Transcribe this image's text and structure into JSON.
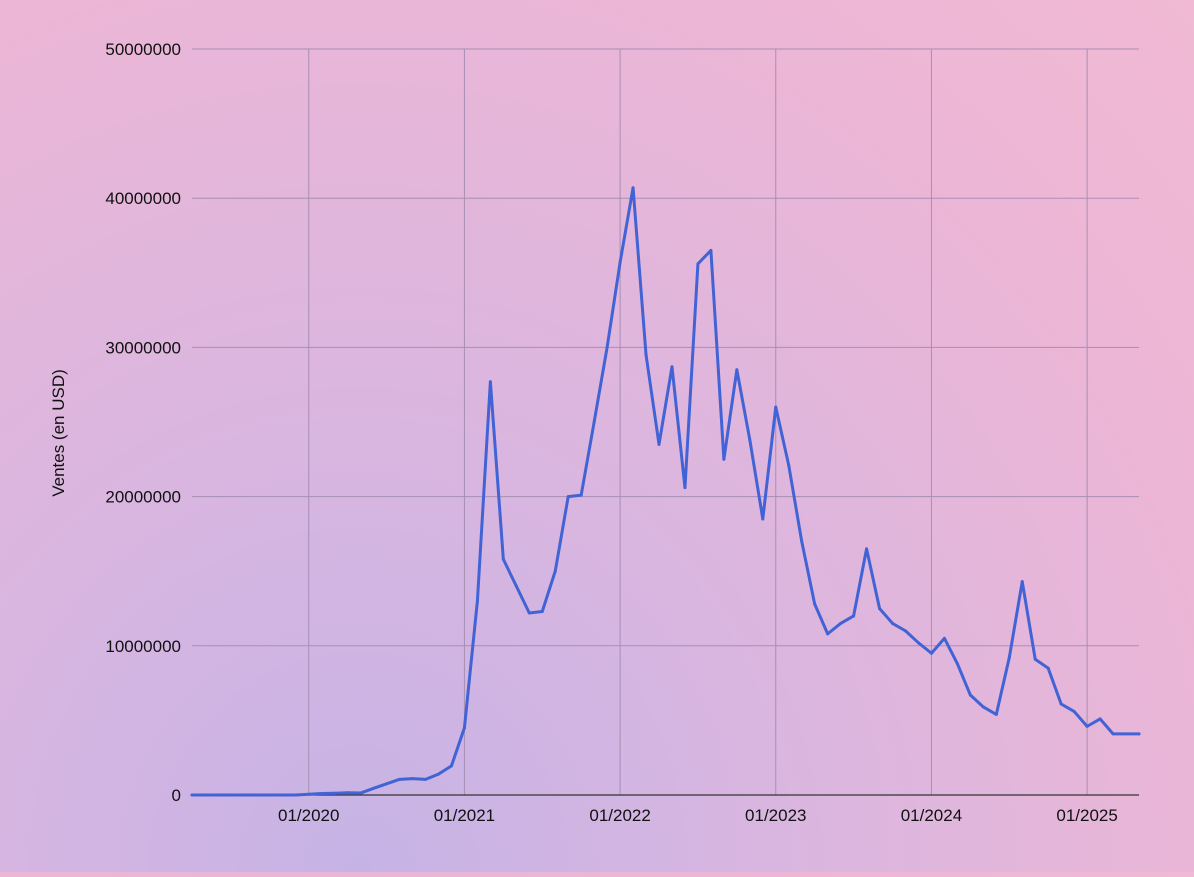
{
  "chart_data": {
    "type": "line",
    "title": "",
    "xlabel": "",
    "ylabel": "Ventes (en USD)",
    "colors": {
      "line": "#4263d6",
      "grid": "#a78fb3"
    },
    "grid": true,
    "y_ticks": [
      "0",
      "10000000",
      "20000000",
      "30000000",
      "40000000",
      "50000000"
    ],
    "x_ticks": [
      "01/2020",
      "01/2021",
      "01/2022",
      "01/2023",
      "01/2024",
      "01/2025"
    ],
    "ylim": [
      0,
      50000000
    ],
    "xlim": [
      "2019-04",
      "2025-05"
    ],
    "series": [
      {
        "x": [
          "2019-04",
          "2019-05",
          "2019-06",
          "2019-07",
          "2019-08",
          "2019-09",
          "2019-10",
          "2019-11",
          "2019-12",
          "2020-01",
          "2020-02",
          "2020-03",
          "2020-04",
          "2020-05",
          "2020-06",
          "2020-07",
          "2020-08",
          "2020-09",
          "2020-10",
          "2020-11",
          "2020-12",
          "2021-01",
          "2021-02",
          "2021-03",
          "2021-04",
          "2021-05",
          "2021-06",
          "2021-07",
          "2021-08",
          "2021-09",
          "2021-10",
          "2021-11",
          "2021-12",
          "2022-01",
          "2022-02",
          "2022-03",
          "2022-04",
          "2022-05",
          "2022-06",
          "2022-07",
          "2022-08",
          "2022-09",
          "2022-10",
          "2022-11",
          "2022-12",
          "2023-01",
          "2023-02",
          "2023-03",
          "2023-04",
          "2023-05",
          "2023-06",
          "2023-07",
          "2023-08",
          "2023-09",
          "2023-10",
          "2023-11",
          "2023-12",
          "2024-01",
          "2024-02",
          "2024-03",
          "2024-04",
          "2024-05",
          "2024-06",
          "2024-07",
          "2024-08",
          "2024-09",
          "2024-10",
          "2024-11",
          "2024-12",
          "2025-01",
          "2025-02",
          "2025-03",
          "2025-04",
          "2025-05"
        ],
        "values": [
          0,
          0,
          0,
          0,
          0,
          0,
          0,
          0,
          0,
          50000,
          100000,
          120000,
          150000,
          130000,
          450000,
          750000,
          1050000,
          1100000,
          1050000,
          1400000,
          1950000,
          4500000,
          13000000,
          27700000,
          15800000,
          14000000,
          12200000,
          12300000,
          15000000,
          20000000,
          20100000,
          25000000,
          30000000,
          35700000,
          40700000,
          29500000,
          23500000,
          28700000,
          20600000,
          35600000,
          36500000,
          22500000,
          28500000,
          23800000,
          18500000,
          26000000,
          22100000,
          17000000,
          12800000,
          10800000,
          11500000,
          12000000,
          16500000,
          12500000,
          11500000,
          11000000,
          10200000,
          9500000,
          10500000,
          8800000,
          6700000,
          5900000,
          5400000,
          9200000,
          14300000,
          9100000,
          8500000,
          6100000,
          5600000,
          4600000,
          5100000,
          4100000,
          4100000,
          4100000
        ]
      }
    ]
  }
}
